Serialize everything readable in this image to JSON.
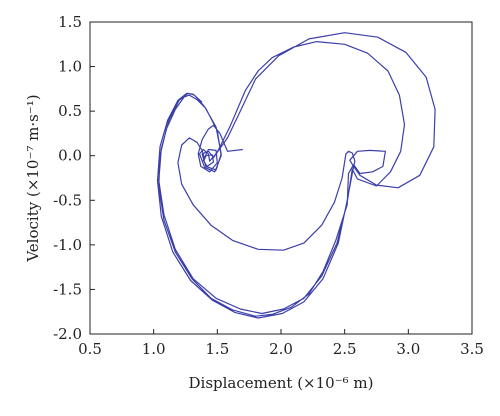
{
  "chart_data": {
    "type": "line",
    "title": "",
    "xlabel": "Displacement (×10⁻⁶ m)",
    "ylabel": "Velocity (×10⁻⁷ m·s⁻¹)",
    "xlim": [
      0.5,
      3.5
    ],
    "ylim": [
      -2.0,
      1.5
    ],
    "x_ticks": [
      "0.5",
      "1.0",
      "1.5",
      "2.0",
      "2.5",
      "3.0",
      "3.5"
    ],
    "y_ticks": [
      "1.5",
      "1.0",
      "0.5",
      "0.0",
      "-0.5",
      "-1.0",
      "-1.5",
      "-2.0"
    ],
    "grid": false,
    "line_color": "#3b3fa8",
    "series": [
      {
        "values": [
          [
            1.7,
            0.07
          ],
          [
            1.58,
            0.05
          ],
          [
            1.52,
            0.25
          ],
          [
            1.47,
            0.34
          ],
          [
            1.43,
            0.3
          ],
          [
            1.38,
            0.18
          ],
          [
            1.35,
            0.02
          ],
          [
            1.37,
            -0.12
          ],
          [
            1.44,
            -0.18
          ],
          [
            1.5,
            -0.08
          ],
          [
            1.49,
            0.06
          ],
          [
            1.43,
            0.07
          ],
          [
            1.39,
            -0.05
          ],
          [
            1.42,
            -0.12
          ],
          [
            1.47,
            -0.07
          ],
          [
            1.46,
            0.01
          ],
          [
            1.41,
            0.0
          ],
          [
            1.4,
            -0.04
          ],
          [
            1.38,
            0.06
          ],
          [
            1.34,
            0.15
          ],
          [
            1.28,
            0.2
          ],
          [
            1.22,
            0.12
          ],
          [
            1.19,
            -0.08
          ],
          [
            1.22,
            -0.32
          ],
          [
            1.31,
            -0.55
          ],
          [
            1.45,
            -0.78
          ],
          [
            1.62,
            -0.95
          ],
          [
            1.82,
            -1.05
          ],
          [
            2.02,
            -1.06
          ],
          [
            2.18,
            -0.98
          ],
          [
            2.32,
            -0.78
          ],
          [
            2.42,
            -0.52
          ],
          [
            2.48,
            -0.25
          ],
          [
            2.51,
            0.02
          ],
          [
            2.53,
            0.05
          ],
          [
            2.56,
            0.03
          ],
          [
            2.58,
            -0.06
          ],
          [
            2.57,
            -0.12
          ],
          [
            2.54,
            -0.05
          ],
          [
            2.6,
            0.05
          ],
          [
            2.7,
            0.06
          ],
          [
            2.82,
            0.05
          ],
          [
            2.8,
            -0.12
          ],
          [
            2.72,
            -0.18
          ],
          [
            2.62,
            -0.2
          ],
          [
            2.57,
            -0.1
          ],
          [
            2.53,
            -0.2
          ],
          [
            2.52,
            -0.55
          ],
          [
            2.43,
            -0.95
          ],
          [
            2.33,
            -1.3
          ],
          [
            2.22,
            -1.55
          ],
          [
            2.08,
            -1.7
          ],
          [
            1.93,
            -1.78
          ],
          [
            1.8,
            -1.8
          ],
          [
            1.62,
            -1.73
          ],
          [
            1.45,
            -1.6
          ],
          [
            1.3,
            -1.38
          ],
          [
            1.17,
            -1.08
          ],
          [
            1.08,
            -0.72
          ],
          [
            1.04,
            -0.35
          ],
          [
            1.05,
            0.0
          ],
          [
            1.1,
            0.3
          ],
          [
            1.17,
            0.52
          ],
          [
            1.24,
            0.66
          ],
          [
            1.28,
            0.68
          ],
          [
            1.34,
            0.63
          ],
          [
            1.41,
            0.53
          ],
          [
            1.5,
            0.28
          ],
          [
            1.53,
            0.0
          ],
          [
            1.48,
            -0.18
          ],
          [
            1.4,
            -0.13
          ],
          [
            1.36,
            0.02
          ],
          [
            1.39,
            0.07
          ],
          [
            1.43,
            0.02
          ],
          [
            1.44,
            -0.06
          ],
          [
            1.5,
            0.04
          ],
          [
            1.6,
            0.33
          ],
          [
            1.72,
            0.73
          ],
          [
            1.82,
            0.95
          ],
          [
            1.93,
            1.1
          ],
          [
            2.1,
            1.22
          ],
          [
            2.28,
            1.28
          ],
          [
            2.5,
            1.25
          ],
          [
            2.68,
            1.15
          ],
          [
            2.84,
            0.95
          ],
          [
            2.93,
            0.68
          ],
          [
            2.97,
            0.35
          ],
          [
            2.94,
            0.05
          ],
          [
            2.86,
            -0.18
          ],
          [
            2.75,
            -0.34
          ],
          [
            2.6,
            -0.26
          ],
          [
            2.56,
            -0.15
          ],
          [
            2.52,
            -0.52
          ],
          [
            2.44,
            -0.98
          ],
          [
            2.32,
            -1.35
          ],
          [
            2.18,
            -1.6
          ],
          [
            2.02,
            -1.72
          ],
          [
            1.85,
            -1.77
          ],
          [
            1.68,
            -1.72
          ],
          [
            1.49,
            -1.6
          ],
          [
            1.31,
            -1.38
          ],
          [
            1.17,
            -1.05
          ],
          [
            1.08,
            -0.66
          ],
          [
            1.04,
            -0.28
          ],
          [
            1.06,
            0.08
          ],
          [
            1.12,
            0.4
          ],
          [
            1.2,
            0.62
          ],
          [
            1.27,
            0.7
          ],
          [
            1.32,
            0.68
          ],
          [
            1.4,
            0.55
          ],
          [
            1.49,
            0.32
          ],
          [
            1.53,
            0.02
          ],
          [
            1.49,
            -0.16
          ],
          [
            1.41,
            -0.12
          ],
          [
            1.38,
            0.02
          ],
          [
            1.43,
            0.05
          ],
          [
            1.47,
            -0.02
          ],
          [
            1.58,
            0.2
          ],
          [
            1.68,
            0.5
          ],
          [
            1.8,
            0.86
          ],
          [
            1.98,
            1.12
          ],
          [
            2.22,
            1.31
          ],
          [
            2.5,
            1.38
          ],
          [
            2.76,
            1.33
          ],
          [
            2.98,
            1.16
          ],
          [
            3.14,
            0.88
          ],
          [
            3.21,
            0.52
          ],
          [
            3.2,
            0.1
          ],
          [
            3.09,
            -0.22
          ],
          [
            2.92,
            -0.36
          ],
          [
            2.75,
            -0.33
          ],
          [
            2.62,
            -0.22
          ],
          [
            2.57,
            -0.12
          ],
          [
            2.52,
            -0.5
          ],
          [
            2.45,
            -0.98
          ],
          [
            2.33,
            -1.38
          ],
          [
            2.18,
            -1.64
          ],
          [
            2.01,
            -1.77
          ],
          [
            1.82,
            -1.82
          ],
          [
            1.64,
            -1.76
          ],
          [
            1.46,
            -1.62
          ],
          [
            1.29,
            -1.4
          ],
          [
            1.15,
            -1.08
          ],
          [
            1.06,
            -0.68
          ],
          [
            1.03,
            -0.28
          ],
          [
            1.05,
            0.1
          ],
          [
            1.11,
            0.4
          ],
          [
            1.19,
            0.62
          ],
          [
            1.26,
            0.7
          ],
          [
            1.31,
            0.69
          ],
          [
            1.38,
            0.6
          ]
        ]
      }
    ]
  }
}
